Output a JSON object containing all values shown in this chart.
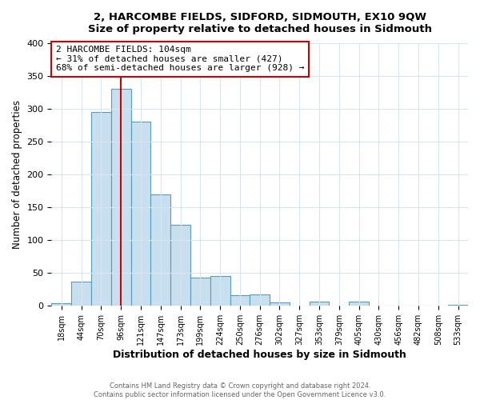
{
  "title": "2, HARCOMBE FIELDS, SIDFORD, SIDMOUTH, EX10 9QW",
  "subtitle": "Size of property relative to detached houses in Sidmouth",
  "xlabel": "Distribution of detached houses by size in Sidmouth",
  "ylabel": "Number of detached properties",
  "bin_labels": [
    "18sqm",
    "44sqm",
    "70sqm",
    "96sqm",
    "121sqm",
    "147sqm",
    "173sqm",
    "199sqm",
    "224sqm",
    "250sqm",
    "276sqm",
    "302sqm",
    "327sqm",
    "353sqm",
    "379sqm",
    "405sqm",
    "430sqm",
    "456sqm",
    "482sqm",
    "508sqm",
    "533sqm"
  ],
  "bar_heights": [
    4,
    37,
    295,
    330,
    280,
    170,
    123,
    43,
    46,
    16,
    17,
    5,
    0,
    7,
    0,
    6,
    0,
    0,
    0,
    0,
    2
  ],
  "bar_color": "#c8dff0",
  "bar_edge_color": "#5a9aba",
  "vline_color": "#cc0000",
  "vline_x": 3.5,
  "marker_label": "2 HARCOMBE FIELDS: 104sqm",
  "annotation_line1": "← 31% of detached houses are smaller (427)",
  "annotation_line2": "68% of semi-detached houses are larger (928) →",
  "annotation_box_color": "#ffffff",
  "annotation_border_color": "#cc0000",
  "ylim": [
    0,
    400
  ],
  "yticks": [
    0,
    50,
    100,
    150,
    200,
    250,
    300,
    350,
    400
  ],
  "footer_line1": "Contains HM Land Registry data © Crown copyright and database right 2024.",
  "footer_line2": "Contains public sector information licensed under the Open Government Licence v3.0.",
  "bg_color": "#ffffff",
  "plot_bg_color": "#ffffff",
  "grid_color": "#d8e4f0"
}
